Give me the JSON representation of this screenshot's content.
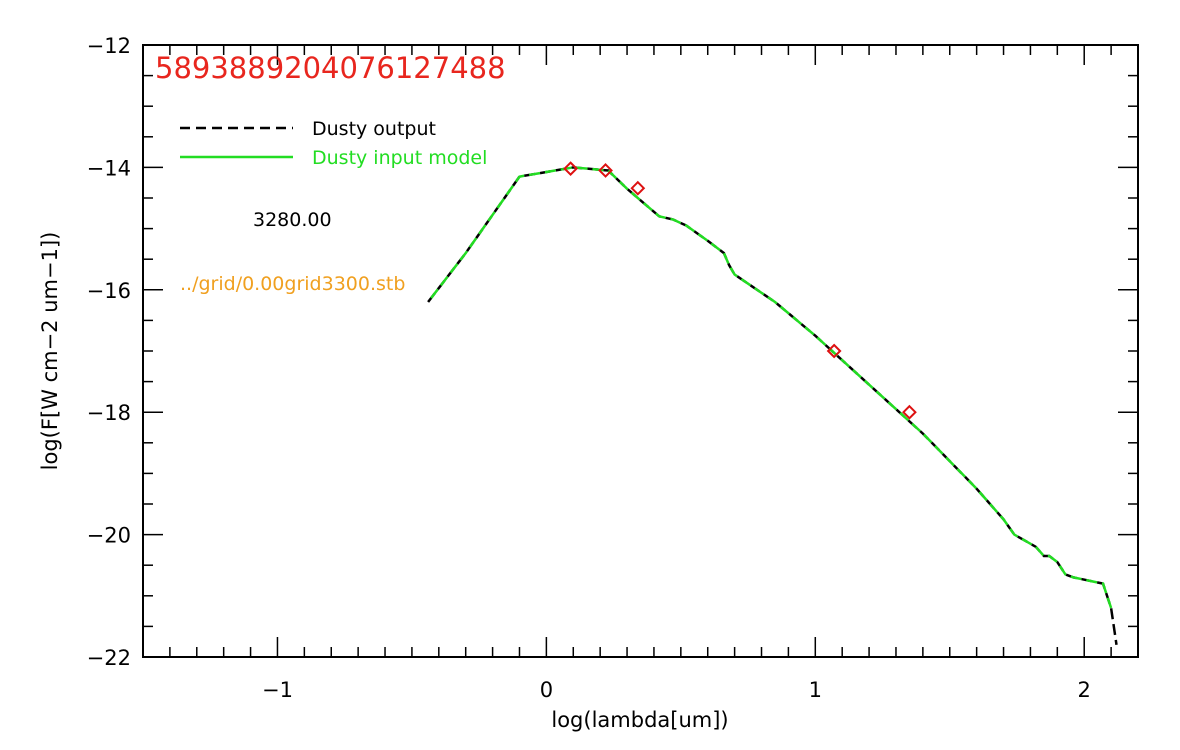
{
  "chart_data": {
    "type": "line",
    "title": "5893889204076127488",
    "xlabel": "log(lambda[um])",
    "ylabel": "log(F[W cm−2 um−1])",
    "xlim": [
      -1.5,
      2.2
    ],
    "ylim": [
      -22,
      -12
    ],
    "x_ticks": [
      -1,
      0,
      1,
      2
    ],
    "x_tick_labels": [
      "−1",
      "0",
      "1",
      "2"
    ],
    "y_ticks": [
      -22,
      -20,
      -18,
      -16,
      -14,
      -12
    ],
    "y_tick_labels": [
      "−22",
      "−20",
      "−18",
      "−16",
      "−14",
      "−12"
    ],
    "grid": false,
    "legend_position": "top-left",
    "annotations": {
      "temperature": "3280.00",
      "grid_file": "../grid/0.00grid3300.stb"
    },
    "colors": {
      "title": "#e8261e",
      "output": "#000000",
      "input": "#22dd22",
      "markers": "#dd1111",
      "grid_file": "#f0a020"
    },
    "series": [
      {
        "name": "Dusty output",
        "style": "dashed",
        "x": [
          -0.44,
          -0.3,
          -0.1,
          0.1,
          0.23,
          0.3,
          0.42,
          0.47,
          0.52,
          0.6,
          0.66,
          0.68,
          0.7,
          0.75,
          0.85,
          1.0,
          1.2,
          1.4,
          1.6,
          1.7,
          1.74,
          1.78,
          1.82,
          1.85,
          1.87,
          1.9,
          1.93,
          1.96,
          2.07,
          2.1,
          2.12
        ],
        "y": [
          -16.2,
          -15.4,
          -14.15,
          -14.0,
          -14.05,
          -14.35,
          -14.8,
          -14.85,
          -14.95,
          -15.2,
          -15.4,
          -15.6,
          -15.75,
          -15.9,
          -16.2,
          -16.75,
          -17.55,
          -18.35,
          -19.25,
          -19.75,
          -20.0,
          -20.1,
          -20.2,
          -20.35,
          -20.35,
          -20.45,
          -20.65,
          -20.7,
          -20.8,
          -21.2,
          -21.8
        ]
      },
      {
        "name": "Dusty input model",
        "style": "solid",
        "x": [
          -0.44,
          -0.3,
          -0.1,
          0.1,
          0.23,
          0.3,
          0.42,
          0.47,
          0.52,
          0.6,
          0.66,
          0.68,
          0.7,
          0.75,
          0.85,
          1.0,
          1.2,
          1.4,
          1.6,
          1.7,
          1.74,
          1.78,
          1.82,
          1.85,
          1.87,
          1.9,
          1.93,
          1.96,
          2.07,
          2.1
        ],
        "y": [
          -16.2,
          -15.4,
          -14.15,
          -14.0,
          -14.05,
          -14.35,
          -14.8,
          -14.85,
          -14.95,
          -15.2,
          -15.4,
          -15.6,
          -15.75,
          -15.9,
          -16.2,
          -16.75,
          -17.55,
          -18.35,
          -19.25,
          -19.75,
          -20.0,
          -20.1,
          -20.2,
          -20.35,
          -20.35,
          -20.45,
          -20.65,
          -20.7,
          -20.8,
          -21.2
        ]
      }
    ],
    "markers": {
      "shape": "diamond",
      "x": [
        0.09,
        0.22,
        0.34,
        1.07,
        1.35
      ],
      "y": [
        -14.02,
        -14.05,
        -14.34,
        -17.0,
        -18.0
      ]
    }
  }
}
